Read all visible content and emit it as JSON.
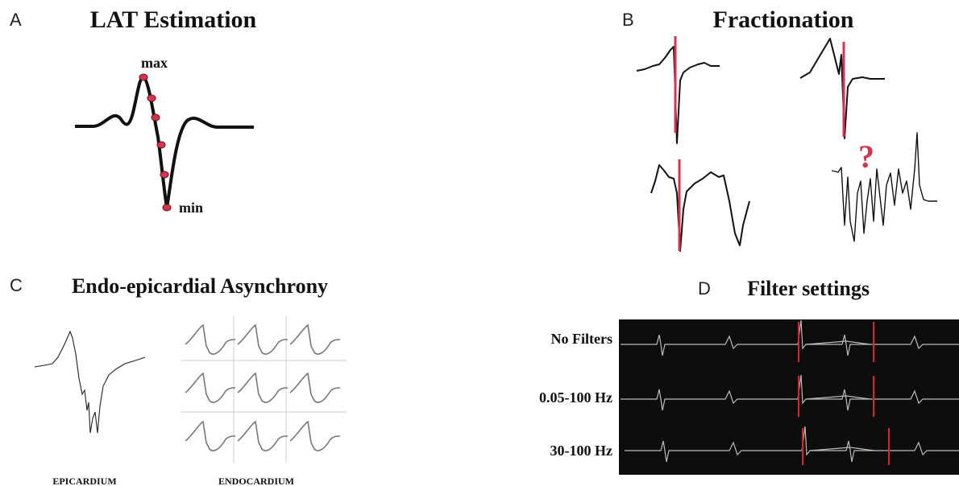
{
  "panels": [
    {
      "letter": "A",
      "title": "LAT Estimation",
      "labels": [
        "max",
        "min"
      ]
    },
    {
      "letter": "B",
      "title": "Fractionation",
      "annotation": "?"
    },
    {
      "letter": "C",
      "title": "Endo-epicardial Asynchrony",
      "labels": [
        "EPICARDIUM",
        "ENDOCARDIUM"
      ]
    },
    {
      "letter": "D",
      "title": "Filter settings",
      "rows": [
        "No Filters",
        "0.05-100 Hz",
        "30-100 Hz"
      ]
    }
  ]
}
